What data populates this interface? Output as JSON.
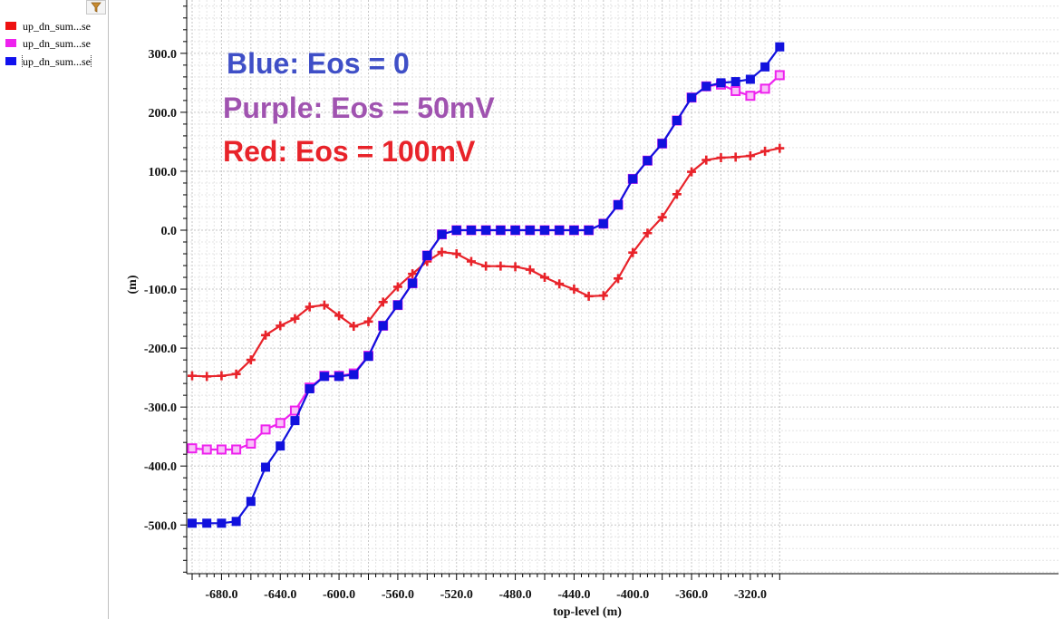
{
  "legend": {
    "items": [
      {
        "label": "up_dn_sum...se",
        "color": "#ee1111"
      },
      {
        "label": "up_dn_sum...se",
        "color": "#ee22ee"
      },
      {
        "label": "up_dn_sum...se",
        "color": "#1111ee"
      }
    ],
    "filter_icon": "filter-funnel-icon"
  },
  "annotations": [
    {
      "text": "Blue: Eos = 0",
      "color": "#3f4fc7"
    },
    {
      "text": "Purple: Eos = 50mV",
      "color": "#a053b0"
    },
    {
      "text": "Red: Eos = 100mV",
      "color": "#e8232a"
    }
  ],
  "chart_data": {
    "type": "line",
    "xlabel": "top-level (m)",
    "ylabel": "(m)",
    "xlim": [
      -700,
      -297
    ],
    "ylim": [
      -580,
      340
    ],
    "xticks": [
      -680,
      -640,
      -600,
      -560,
      -520,
      -480,
      -440,
      -400,
      -360,
      -320
    ],
    "xtick_labels": [
      "-680.0",
      "-640.0",
      "-600.0",
      "-560.0",
      "-520.0",
      "-480.0",
      "-440.0",
      "-400.0",
      "-360.0",
      "-320.0"
    ],
    "yticks": [
      300,
      200,
      100,
      0,
      -100,
      -200,
      -300,
      -400,
      -500
    ],
    "ytick_labels": [
      "300.0",
      "200.0",
      "100.0",
      "0.0",
      "-100.0",
      "-200.0",
      "-300.0",
      "-400.0",
      "-500.0"
    ],
    "grid": true,
    "x": [
      -700,
      -690,
      -680,
      -670,
      -660,
      -650,
      -640,
      -630,
      -620,
      -610,
      -600,
      -590,
      -580,
      -570,
      -560,
      -550,
      -540,
      -530,
      -520,
      -510,
      -500,
      -490,
      -480,
      -470,
      -460,
      -450,
      -440,
      -430,
      -420,
      -410,
      -400,
      -390,
      -380,
      -370,
      -360,
      -350,
      -340,
      -330,
      -320,
      -310,
      -300
    ],
    "series": [
      {
        "color": "#e8232a",
        "marker": "plus",
        "values": [
          -247,
          -248,
          -247,
          -244,
          -220,
          -178,
          -162,
          -150,
          -130,
          -127,
          -145,
          -163,
          -155,
          -122,
          -96,
          -74,
          -53,
          -37,
          -40,
          -53,
          -61,
          -61,
          -62,
          -67,
          -80,
          -91,
          -100,
          -112,
          -111,
          -82,
          -38,
          -5,
          22,
          61,
          99,
          119,
          123,
          124,
          126,
          134,
          139
        ]
      },
      {
        "color": "#ee22ee",
        "marker": "square-open",
        "values": [
          -370,
          -372,
          -372,
          -372,
          -362,
          -338,
          -327,
          -306,
          -267,
          -247,
          -247,
          -243,
          -213,
          -162,
          -127,
          -90,
          -43,
          -7,
          0,
          0,
          0,
          0,
          0,
          0,
          0,
          0,
          0,
          0,
          11,
          43,
          87,
          118,
          147,
          186,
          225,
          244,
          247,
          236,
          228,
          240,
          263
        ]
      },
      {
        "color": "#1111dd",
        "marker": "square",
        "values": [
          -497,
          -497,
          -497,
          -494,
          -460,
          -402,
          -366,
          -323,
          -269,
          -248,
          -248,
          -245,
          -214,
          -162,
          -127,
          -90,
          -43,
          -7,
          0,
          0,
          0,
          0,
          0,
          0,
          0,
          0,
          0,
          0,
          11,
          43,
          87,
          118,
          147,
          186,
          225,
          244,
          250,
          252,
          256,
          277,
          311
        ]
      }
    ]
  }
}
